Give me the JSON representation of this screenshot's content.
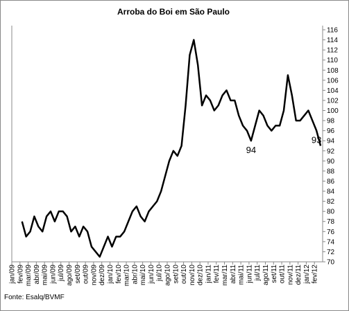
{
  "chart_data": {
    "type": "line",
    "title": "Arroba do Boi  em São Paulo",
    "categories": [
      "jan/09",
      null,
      "fev/09",
      null,
      "mar/09",
      null,
      "abr/09",
      null,
      "mai/09",
      null,
      "jun/09",
      null,
      "jul/09",
      null,
      "ago/09",
      null,
      "set/09",
      null,
      "out/09",
      null,
      "nov/09",
      null,
      "dez/09",
      null,
      "jan/10",
      null,
      "fev/10",
      null,
      "mar/10",
      null,
      "abr/10",
      null,
      "mai/10",
      null,
      "jun/10",
      null,
      "jul/10",
      null,
      "ago/10",
      null,
      "set/10",
      null,
      "out/10",
      null,
      "nov/10",
      null,
      "dez/10",
      null,
      "jan/11",
      null,
      "fev/11",
      null,
      "mar/11",
      null,
      "abr/11",
      null,
      "mai/11",
      null,
      "jun/11",
      null,
      "jul/11",
      null,
      "ago/11",
      null,
      "set/11",
      null,
      "out/11",
      null,
      "nov/11",
      null,
      "dez/11",
      null,
      "jan/12",
      null,
      "fev/12",
      null
    ],
    "series": [
      {
        "color": "#000000",
        "values": [
          null,
          null,
          78,
          75,
          76,
          79,
          77,
          76,
          79,
          80,
          78,
          80,
          80,
          79,
          76,
          77,
          75,
          77,
          76,
          73,
          72,
          71,
          73,
          75,
          73,
          75,
          75,
          76,
          78,
          80,
          81,
          79,
          78,
          80,
          81,
          82,
          84,
          87,
          90,
          92,
          91,
          93,
          101,
          111,
          114,
          109,
          101,
          103,
          102,
          100,
          101,
          103,
          104,
          102,
          102,
          99,
          97,
          96,
          94,
          97,
          100,
          99,
          97,
          96,
          97,
          97,
          100,
          107,
          103,
          98,
          98,
          99,
          100,
          98,
          96,
          93
        ]
      }
    ],
    "ylim": [
      70,
      116
    ],
    "yticks": [
      70,
      72,
      74,
      76,
      78,
      80,
      82,
      84,
      86,
      88,
      90,
      92,
      94,
      96,
      98,
      100,
      102,
      104,
      106,
      108,
      110,
      112,
      114,
      116
    ],
    "annotations": [
      {
        "label": "94",
        "category": "jun/11"
      },
      {
        "label": "93",
        "category": "fev/12"
      }
    ],
    "source": "Fonte: Esalq/BVMF"
  }
}
